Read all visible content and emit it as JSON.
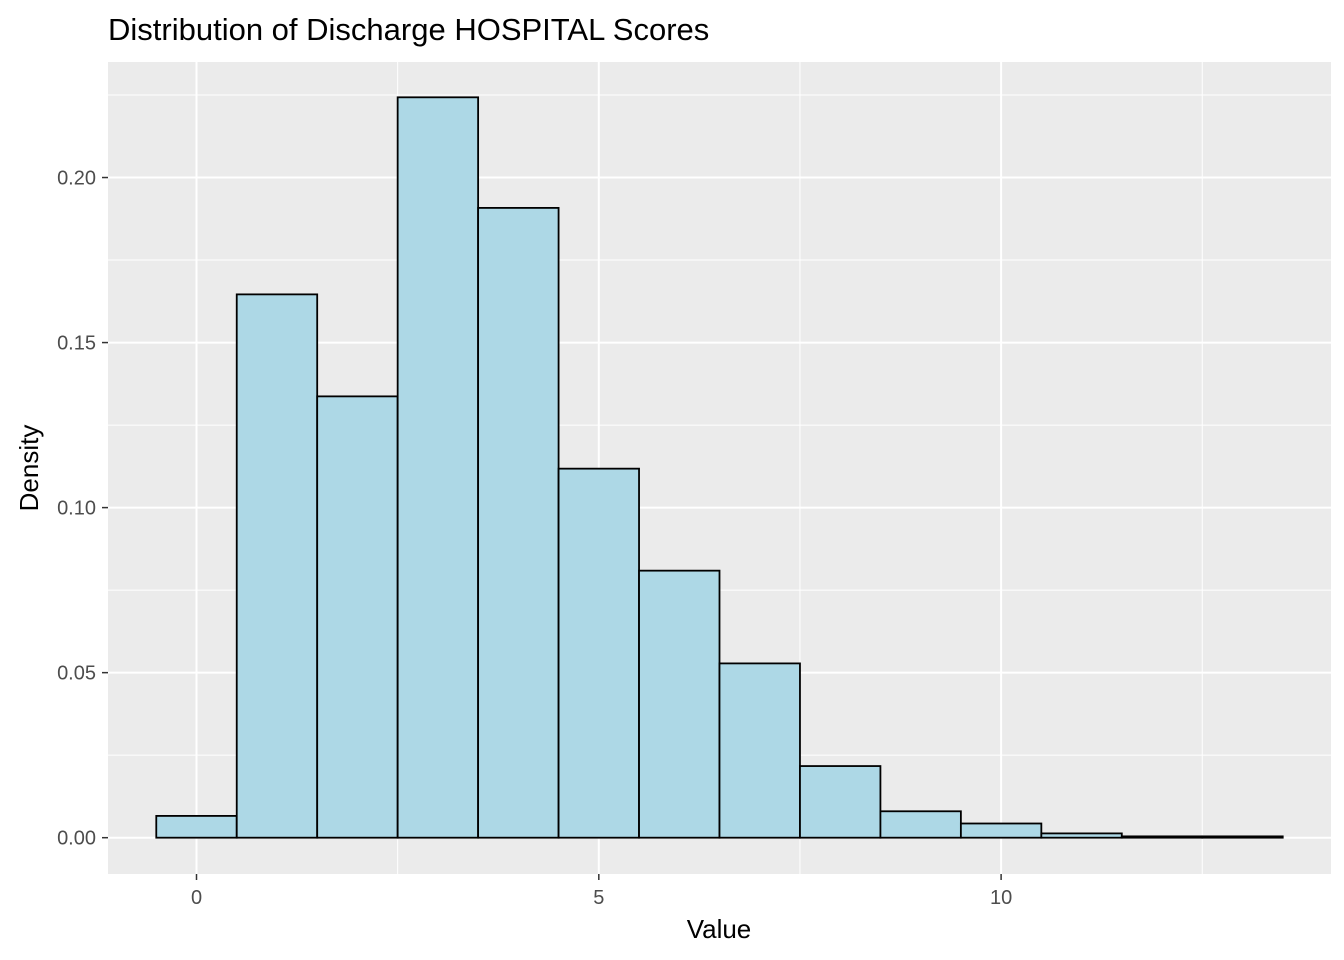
{
  "chart_data": {
    "type": "bar",
    "title": "Distribution of Discharge HOSPITAL Scores",
    "xlabel": "Value",
    "ylabel": "Density",
    "xlim": [
      -1.1,
      14.1
    ],
    "ylim": [
      -0.011,
      0.235
    ],
    "x_ticks": [
      0,
      5,
      10
    ],
    "y_ticks": [
      0.0,
      0.05,
      0.1,
      0.15,
      0.2
    ],
    "x_tick_labels": [
      "0",
      "5",
      "10"
    ],
    "y_tick_labels": [
      "0.00",
      "0.05",
      "0.10",
      "0.15",
      "0.20"
    ],
    "bin_width": 1,
    "bin_centers": [
      0,
      1,
      2,
      3,
      4,
      5,
      6,
      7,
      8,
      9,
      10,
      11,
      12,
      13
    ],
    "values": [
      0.0066,
      0.1646,
      0.1337,
      0.2243,
      0.1908,
      0.1118,
      0.0809,
      0.0528,
      0.0217,
      0.008,
      0.0043,
      0.0013,
      0.0004,
      0.0004
    ],
    "grid": true,
    "colors": {
      "panel_background": "#ebebeb",
      "grid": "#ffffff",
      "bar_fill": "#add8e6",
      "bar_stroke": "#000000"
    }
  }
}
